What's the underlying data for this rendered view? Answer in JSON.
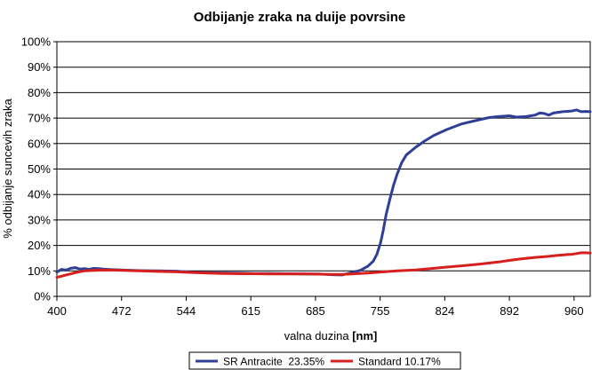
{
  "chart_data": {
    "type": "line",
    "title": "Odbijanje zraka na duije povrsine",
    "xlabel": "valna duzina",
    "xlabel_unit": "[nm]",
    "ylabel": "% odbijanje suncevih zraka",
    "xlim": [
      400,
      980
    ],
    "ylim": [
      0,
      100
    ],
    "x_ticks": [
      "400",
      "472",
      "544",
      "615",
      "685",
      "755",
      "824",
      "892",
      "960"
    ],
    "y_ticks": [
      "0%",
      "10%",
      "20%",
      "30%",
      "40%",
      "50%",
      "60%",
      "70%",
      "80%",
      "90%",
      "100%"
    ],
    "grid": "horizontal",
    "legend_position": "bottom",
    "series": [
      {
        "name": "SR Antracite  23.35%",
        "color": "#2f3f97",
        "x": [
          400,
          405,
          410,
          415,
          420,
          425,
          430,
          435,
          440,
          445,
          450,
          460,
          472,
          490,
          510,
          530,
          544,
          560,
          580,
          600,
          615,
          630,
          650,
          670,
          685,
          700,
          710,
          720,
          730,
          738,
          744,
          748,
          752,
          755,
          758,
          762,
          766,
          770,
          775,
          780,
          790,
          800,
          810,
          824,
          840,
          855,
          870,
          880,
          892,
          900,
          910,
          920,
          925,
          930,
          935,
          940,
          950,
          960,
          965,
          970,
          975,
          980
        ],
        "y": [
          9.5,
          10.6,
          10.3,
          11,
          11.3,
          10.7,
          10.9,
          10.6,
          11,
          10.9,
          10.7,
          10.5,
          10.3,
          10.1,
          10,
          9.9,
          9.5,
          9.3,
          9.2,
          9.1,
          9,
          9,
          8.9,
          8.8,
          8.8,
          8.5,
          8.4,
          9.3,
          10.2,
          11.8,
          13.8,
          16.5,
          21,
          26,
          32,
          38,
          43.5,
          48,
          52.5,
          55.5,
          58.5,
          61,
          63.2,
          65.5,
          67.7,
          69,
          70.2,
          70.6,
          70.9,
          70.4,
          70.6,
          71.2,
          72,
          71.8,
          71.2,
          72,
          72.5,
          72.8,
          73.2,
          72.5,
          72.6,
          72.5
        ]
      },
      {
        "name": "Standard 10.17%",
        "color": "#d7201e",
        "x": [
          400,
          405,
          410,
          415,
          420,
          425,
          430,
          440,
          450,
          460,
          472,
          490,
          510,
          530,
          544,
          560,
          580,
          600,
          615,
          630,
          650,
          670,
          685,
          700,
          710,
          720,
          740,
          755,
          770,
          790,
          810,
          824,
          840,
          860,
          880,
          892,
          905,
          920,
          935,
          945,
          955,
          960,
          965,
          970,
          975,
          980
        ],
        "y": [
          7.5,
          7.9,
          8.4,
          8.8,
          9.3,
          9.7,
          10,
          10.2,
          10.3,
          10.3,
          10.2,
          10,
          9.8,
          9.6,
          9.4,
          9.2,
          9,
          8.9,
          8.9,
          8.8,
          8.8,
          8.8,
          8.7,
          8.6,
          8.6,
          8.8,
          9.2,
          9.6,
          10,
          10.4,
          11,
          11.5,
          12,
          12.7,
          13.5,
          14.1,
          14.7,
          15.3,
          15.7,
          16.1,
          16.4,
          16.5,
          16.8,
          17.1,
          17.1,
          17
        ]
      }
    ]
  }
}
